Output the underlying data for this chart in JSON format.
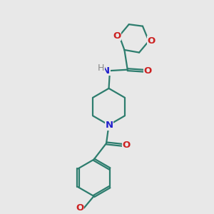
{
  "bg_color": "#e8e8e8",
  "bond_color": "#2d7d6e",
  "N_color": "#2222cc",
  "O_color": "#cc2222",
  "H_color": "#888888",
  "line_width": 1.6,
  "font_size": 9.5,
  "fig_w": 3.0,
  "fig_h": 3.0,
  "dpi": 100,
  "xlim": [
    0,
    10
  ],
  "ylim": [
    0,
    10
  ]
}
